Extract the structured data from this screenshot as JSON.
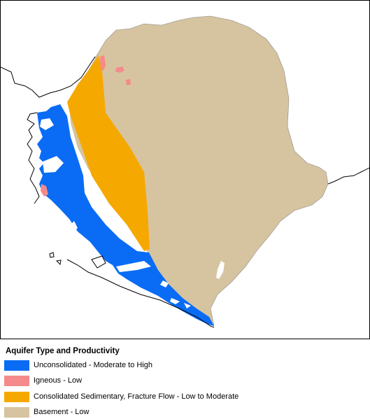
{
  "legend": {
    "title": "Aquifer Type and Productivity",
    "items": [
      {
        "label": "Unconsolidated - Moderate to High",
        "color": "#0a6cf5"
      },
      {
        "label": "Igneous - Low",
        "color": "#f58a8a"
      },
      {
        "label": "Consolidated Sedimentary, Fracture Flow - Low to Moderate",
        "color": "#f5a800"
      },
      {
        "label": "Basement - Low",
        "color": "#d6c4a0"
      }
    ]
  },
  "colors": {
    "background": "#ffffff",
    "outline": "#000000"
  }
}
